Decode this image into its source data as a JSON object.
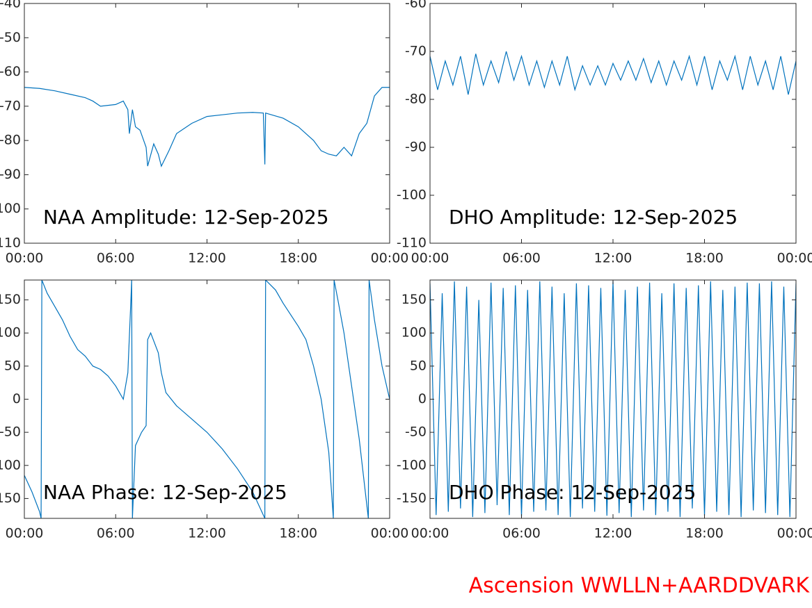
{
  "chart_data": [
    {
      "type": "line",
      "title": "NAA Amplitude: 12-Sep-2025",
      "color": "#0072bd",
      "x": [
        0,
        1,
        2,
        3,
        4,
        4.5,
        5,
        6,
        6.5,
        6.8,
        6.9,
        7.1,
        7.3,
        7.6,
        8,
        8.1,
        8.5,
        8.8,
        9,
        9.5,
        10,
        11,
        12,
        13,
        14,
        15,
        15.7,
        15.8,
        15.85,
        16,
        17,
        18,
        19,
        19.5,
        20,
        20.5,
        21,
        21.5,
        22,
        22.5,
        23,
        23.5,
        24
      ],
      "values": [
        -64.5,
        -64.8,
        -65.5,
        -66.5,
        -67.5,
        -68.5,
        -70,
        -69.5,
        -68.5,
        -71,
        -78,
        -71,
        -76,
        -77,
        -82,
        -87.5,
        -81,
        -84,
        -87.5,
        -83,
        -78,
        -75,
        -73,
        -72.5,
        -72,
        -71.8,
        -72,
        -87,
        -72,
        -72.2,
        -73.5,
        -76,
        -80,
        -83,
        -84,
        -84.5,
        -82,
        -84.5,
        -78,
        -75,
        -67,
        -64.5,
        -64.5
      ],
      "xlim": [
        0,
        24
      ],
      "xticks": [
        {
          "value": 0,
          "label": "00:00"
        },
        {
          "value": 6,
          "label": "06:00"
        },
        {
          "value": 12,
          "label": "12:00"
        },
        {
          "value": 18,
          "label": "18:00"
        },
        {
          "value": 24,
          "label": "00:00"
        }
      ],
      "ylim": [
        -110,
        -40
      ],
      "yticks": [
        -40,
        -50,
        -60,
        -70,
        -80,
        -90,
        -100,
        -110
      ]
    },
    {
      "type": "line",
      "title": "DHO Amplitude: 12-Sep-2025",
      "color": "#0072bd",
      "x": [
        0,
        0.5,
        1,
        1.5,
        2,
        2.5,
        3,
        3.5,
        4,
        4.5,
        5,
        5.5,
        6,
        6.5,
        7,
        7.5,
        8,
        8.5,
        9,
        9.5,
        10,
        10.5,
        11,
        11.5,
        12,
        12.5,
        13,
        13.5,
        14,
        14.5,
        15,
        15.5,
        16,
        16.5,
        17,
        17.5,
        18,
        18.5,
        19,
        19.5,
        20,
        20.5,
        21,
        21.5,
        22,
        22.5,
        23,
        23.5,
        24
      ],
      "values": [
        -71,
        -78,
        -72,
        -77,
        -71,
        -79,
        -70.5,
        -77,
        -72,
        -76.5,
        -70,
        -76,
        -71,
        -77,
        -72,
        -77.5,
        -72,
        -77,
        -71,
        -78,
        -73,
        -77,
        -73,
        -77,
        -72.5,
        -76,
        -72,
        -76,
        -71.5,
        -76.5,
        -72,
        -77,
        -72,
        -76,
        -71,
        -77,
        -71,
        -78,
        -72,
        -76,
        -71,
        -78,
        -71,
        -77,
        -72,
        -78,
        -71,
        -79,
        -72
      ],
      "xlim": [
        0,
        24
      ],
      "xticks": [
        {
          "value": 0,
          "label": "00:00"
        },
        {
          "value": 6,
          "label": "06:00"
        },
        {
          "value": 12,
          "label": "12:00"
        },
        {
          "value": 18,
          "label": "18:00"
        },
        {
          "value": 24,
          "label": "00:00"
        }
      ],
      "ylim": [
        -110,
        -60
      ],
      "yticks": [
        -60,
        -70,
        -80,
        -90,
        -100,
        -110
      ]
    },
    {
      "type": "line",
      "title": "NAA Phase: 12-Sep-2025",
      "color": "#0072bd",
      "x": [
        0,
        0.5,
        1,
        1.1,
        1.15,
        1.5,
        2,
        2.5,
        3,
        3.5,
        4,
        4.5,
        5,
        5.5,
        6,
        6.5,
        6.8,
        7,
        7.05,
        7.1,
        7.3,
        7.7,
        8,
        8.1,
        8.3,
        8.8,
        9,
        9.3,
        10,
        11,
        12,
        13,
        14,
        15,
        15.8,
        15.85,
        16.5,
        17,
        18,
        18.5,
        19,
        19.5,
        20,
        20.3,
        20.35,
        20.6,
        21,
        21.5,
        22,
        22.6,
        22.65,
        23,
        23.5,
        24
      ],
      "values": [
        -115,
        -140,
        -170,
        -180,
        180,
        160,
        140,
        120,
        95,
        75,
        65,
        50,
        45,
        35,
        20,
        0,
        40,
        150,
        180,
        -180,
        -70,
        -50,
        -40,
        90,
        100,
        70,
        40,
        10,
        -10,
        -30,
        -50,
        -75,
        -105,
        -140,
        -180,
        180,
        165,
        145,
        110,
        90,
        50,
        0,
        -80,
        -180,
        180,
        150,
        100,
        20,
        -60,
        -180,
        180,
        120,
        50,
        0
      ],
      "xlim": [
        0,
        24
      ],
      "xticks": [
        {
          "value": 0,
          "label": "00:00"
        },
        {
          "value": 6,
          "label": "06:00"
        },
        {
          "value": 12,
          "label": "12:00"
        },
        {
          "value": 18,
          "label": "18:00"
        },
        {
          "value": 24,
          "label": "00:00"
        }
      ],
      "ylim": [
        -180,
        180
      ],
      "yticks": [
        150,
        100,
        50,
        0,
        -50,
        -100,
        -150
      ]
    },
    {
      "type": "line",
      "title": "DHO Phase: 12-Sep-2025",
      "color": "#0072bd",
      "x": [
        0,
        0.4,
        0.8,
        1.2,
        1.6,
        2,
        2.4,
        2.8,
        3.2,
        3.6,
        4,
        4.4,
        4.8,
        5.2,
        5.6,
        6,
        6.4,
        6.8,
        7.2,
        7.6,
        8,
        8.4,
        8.8,
        9.2,
        9.6,
        10,
        10.4,
        10.8,
        11.2,
        11.6,
        12,
        12.4,
        12.8,
        13.2,
        13.6,
        14,
        14.4,
        14.8,
        15.2,
        15.6,
        16,
        16.4,
        16.8,
        17.2,
        17.6,
        18,
        18.4,
        18.8,
        19.2,
        19.6,
        20,
        20.4,
        20.8,
        21.2,
        21.6,
        22,
        22.4,
        22.8,
        23.2,
        23.6,
        24
      ],
      "values": [
        175,
        -175,
        160,
        -170,
        178,
        -165,
        170,
        -178,
        150,
        -172,
        176,
        -160,
        168,
        -175,
        172,
        -178,
        165,
        -170,
        178,
        -168,
        170,
        -175,
        160,
        -178,
        175,
        -165,
        172,
        -170,
        168,
        -176,
        178,
        -172,
        165,
        -178,
        170,
        -168,
        176,
        -175,
        160,
        -170,
        175,
        -178,
        168,
        -165,
        172,
        -176,
        178,
        -170,
        165,
        -175,
        170,
        -178,
        176,
        -168,
        175,
        -172,
        178,
        -175,
        170,
        -178,
        175
      ],
      "xlim": [
        0,
        24
      ],
      "xticks": [
        {
          "value": 0,
          "label": "00:00"
        },
        {
          "value": 6,
          "label": "06:00"
        },
        {
          "value": 12,
          "label": "12:00"
        },
        {
          "value": 18,
          "label": "18:00"
        },
        {
          "value": 24,
          "label": "00:00"
        }
      ],
      "ylim": [
        -180,
        180
      ],
      "yticks": [
        150,
        100,
        50,
        0,
        -50,
        -100,
        -150
      ]
    }
  ],
  "footer": "Ascension WWLLN+AARDDVARK"
}
